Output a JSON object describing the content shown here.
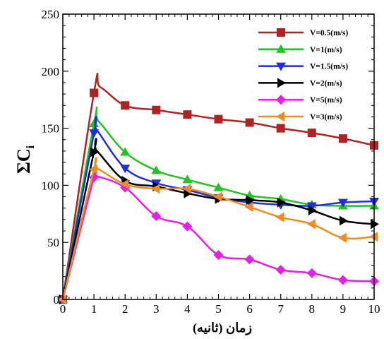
{
  "chart_data": {
    "type": "line",
    "title": "",
    "xlabel": "زمان (ثانیه)",
    "ylabel": "ΣC",
    "ylabel_sub": "i",
    "xlim": [
      0,
      10
    ],
    "ylim": [
      0,
      250
    ],
    "x_ticks": [
      "0",
      "1",
      "2",
      "3",
      "4",
      "5",
      "6",
      "7",
      "8",
      "9",
      "10"
    ],
    "y_ticks": [
      "0",
      "50",
      "100",
      "150",
      "200",
      "250"
    ],
    "grid": false,
    "legend_position": "top-right",
    "series": [
      {
        "name": "V=0.5(m/s)",
        "color": "#b22222",
        "marker": "square",
        "x": [
          0,
          1,
          1.2,
          2,
          3,
          4,
          5,
          6,
          7,
          8,
          9,
          10
        ],
        "y": [
          0,
          181,
          186,
          170,
          166,
          162,
          158,
          155,
          150,
          146,
          141,
          135
        ],
        "marker_x": [
          0,
          1,
          2,
          3,
          4,
          5,
          6,
          7,
          8,
          9,
          10
        ],
        "marker_y": [
          0,
          181,
          170,
          166,
          162,
          158,
          155,
          150,
          146,
          141,
          135
        ]
      },
      {
        "name": "V=1(m/s)",
        "color": "#22c322",
        "marker": "triangle-up",
        "x": [
          0,
          1,
          1.15,
          2,
          3,
          4,
          5,
          6,
          7,
          8,
          9,
          10
        ],
        "y": [
          0,
          154,
          156,
          129,
          113,
          105,
          98,
          91,
          88,
          83,
          82,
          82
        ],
        "marker_x": [
          0,
          1,
          2,
          3,
          4,
          5,
          6,
          7,
          8,
          9,
          10
        ],
        "marker_y": [
          0,
          154,
          129,
          113,
          105,
          98,
          91,
          88,
          83,
          82,
          82
        ]
      },
      {
        "name": "V=1.5(m/s)",
        "color": "#1f2ee0",
        "marker": "triangle-down",
        "x": [
          0,
          1,
          1.1,
          2,
          3,
          4,
          5,
          6,
          7,
          8,
          9,
          10
        ],
        "y": [
          0,
          146,
          148,
          115,
          102,
          96,
          89,
          85,
          83,
          82,
          85,
          86
        ],
        "marker_x": [
          0,
          1,
          2,
          3,
          4,
          5,
          6,
          7,
          8,
          9,
          10
        ],
        "marker_y": [
          0,
          146,
          115,
          102,
          96,
          89,
          85,
          83,
          82,
          85,
          86
        ]
      },
      {
        "name": "V=2(m/s)",
        "color": "#000000",
        "marker": "triangle-right",
        "x": [
          0,
          1,
          1.1,
          2,
          3,
          4,
          5,
          6,
          7,
          8,
          9,
          10
        ],
        "y": [
          0,
          129,
          130,
          104,
          99,
          93,
          88,
          87,
          85,
          78,
          69,
          66
        ],
        "marker_x": [
          0,
          1,
          2,
          3,
          4,
          5,
          6,
          7,
          8,
          9,
          10
        ],
        "marker_y": [
          0,
          129,
          104,
          99,
          93,
          88,
          87,
          85,
          78,
          69,
          66
        ]
      },
      {
        "name": "V=5(m/s)",
        "color": "#e61ee6",
        "marker": "diamond",
        "x": [
          0,
          1,
          1.1,
          2,
          3,
          4,
          5,
          6,
          7,
          8,
          9,
          10
        ],
        "y": [
          0,
          107,
          108,
          98,
          73,
          64,
          39,
          35,
          26,
          23,
          17,
          16
        ],
        "marker_x": [
          0,
          1,
          2,
          3,
          4,
          5,
          6,
          7,
          8,
          9,
          10
        ],
        "marker_y": [
          0,
          107,
          98,
          73,
          64,
          39,
          35,
          26,
          23,
          17,
          16
        ]
      },
      {
        "name": "V=3(m/s)",
        "color": "#f08c1e",
        "marker": "triangle-left",
        "x": [
          0,
          1,
          1.1,
          2,
          3,
          4,
          5,
          6,
          7,
          8,
          9,
          10
        ],
        "y": [
          0,
          114,
          115,
          101,
          97,
          97,
          90,
          81,
          72,
          66,
          54,
          55
        ],
        "marker_x": [
          0,
          1,
          2,
          3,
          4,
          5,
          6,
          7,
          8,
          9,
          10
        ],
        "marker_y": [
          0,
          114,
          101,
          97,
          97,
          90,
          81,
          72,
          66,
          54,
          55
        ]
      }
    ]
  }
}
